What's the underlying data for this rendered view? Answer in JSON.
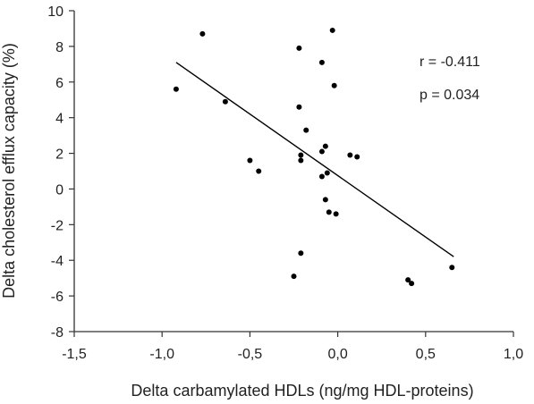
{
  "chart_data": {
    "type": "scatter",
    "title": "",
    "xlabel": "Delta carbamylated HDLs (ng/mg HDL-proteins)",
    "ylabel": "Delta cholesterol efflux capacity (%)",
    "xlim": [
      -1.5,
      1.0
    ],
    "ylim": [
      -8,
      10
    ],
    "x_ticks": [
      -1.5,
      -1.0,
      -0.5,
      0.0,
      0.5,
      1.0
    ],
    "x_tick_labels": [
      "-1,5",
      "-1,0",
      "-0,5",
      "0,0",
      "0,5",
      "1,0"
    ],
    "y_ticks": [
      -8,
      -6,
      -4,
      -2,
      0,
      2,
      4,
      6,
      8,
      10
    ],
    "y_tick_labels": [
      "-8",
      "-6",
      "-4",
      "-2",
      "0",
      "2",
      "4",
      "6",
      "8",
      "10"
    ],
    "grid": false,
    "legend": "none",
    "colors": {
      "points": "#000000",
      "line": "#000000",
      "axis": "#333333"
    },
    "points": [
      {
        "x": -0.92,
        "y": 5.6
      },
      {
        "x": -0.77,
        "y": 8.7
      },
      {
        "x": -0.64,
        "y": 4.9
      },
      {
        "x": -0.5,
        "y": 1.6
      },
      {
        "x": -0.45,
        "y": 1.0
      },
      {
        "x": -0.25,
        "y": -4.9
      },
      {
        "x": -0.22,
        "y": 7.9
      },
      {
        "x": -0.22,
        "y": 4.6
      },
      {
        "x": -0.21,
        "y": 1.9
      },
      {
        "x": -0.21,
        "y": 1.6
      },
      {
        "x": -0.21,
        "y": -3.6
      },
      {
        "x": -0.18,
        "y": 3.3
      },
      {
        "x": -0.09,
        "y": 7.1
      },
      {
        "x": -0.09,
        "y": 2.1
      },
      {
        "x": -0.09,
        "y": 0.7
      },
      {
        "x": -0.07,
        "y": 2.4
      },
      {
        "x": -0.06,
        "y": 0.9
      },
      {
        "x": -0.07,
        "y": -0.6
      },
      {
        "x": -0.05,
        "y": -1.3
      },
      {
        "x": -0.03,
        "y": 8.9
      },
      {
        "x": -0.02,
        "y": 5.8
      },
      {
        "x": -0.01,
        "y": -1.4
      },
      {
        "x": 0.07,
        "y": 1.9
      },
      {
        "x": 0.11,
        "y": 1.8
      },
      {
        "x": 0.4,
        "y": -5.1
      },
      {
        "x": 0.42,
        "y": -5.3
      },
      {
        "x": 0.65,
        "y": -4.4
      }
    ],
    "regression_line": {
      "x": [
        -0.92,
        0.66
      ],
      "y": [
        7.1,
        -3.8
      ]
    },
    "annotations": [
      "r = -0.411",
      "p = 0.034"
    ]
  }
}
